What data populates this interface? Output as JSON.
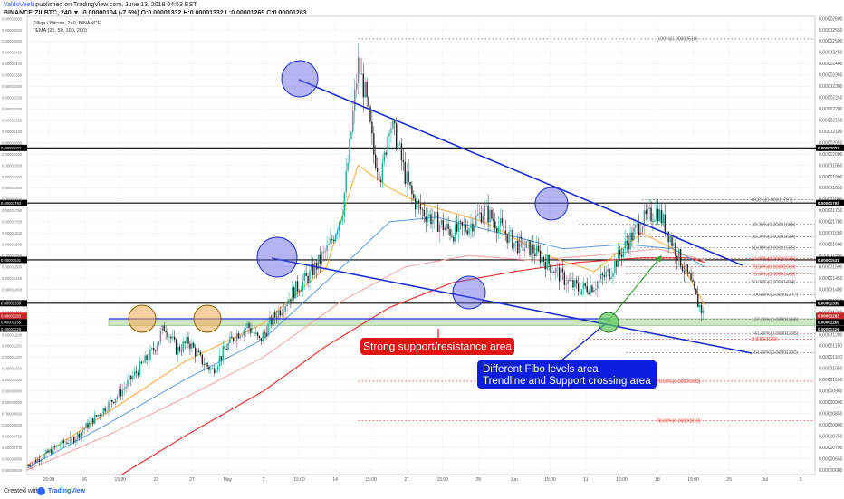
{
  "header": {
    "publisher": "ValdoVeeb",
    "published_line": " published on TradingView.com, June 13, 2018 04:53 EST",
    "symbol_line": "BINANCE:ZILBTC, 240 ▼ -0.00000104 (-7.5%) O:0.00001332 H:0.00001332 L:0.00001269 C:0.00001283",
    "legend_title": "Zilliqa / Bitcoin, 240, BINANCE",
    "indicator": "TEMA (25, 50, 100, 200)"
  },
  "footer": {
    "created_with": "Created with",
    "brand": "TradingView"
  },
  "colors": {
    "tema25": "#f5a93a",
    "tema50": "#5b9be0",
    "tema100": "#f2a0a0",
    "tema200": "#e53935",
    "trendline": "#1e2fd0",
    "support_zone": "#cfe8c4",
    "red_label": "#e31414",
    "blue_label": "#0b1ee0"
  },
  "chart_data": {
    "type": "line",
    "series_kind": "candlestick",
    "ylim": [
      5.8e-06,
      2.61e-05
    ],
    "y_ticks": [
      "0.00002600",
      "0.00002550",
      "0.00002500",
      "0.00002450",
      "0.00002400",
      "0.00002350",
      "0.00002300",
      "0.00002250",
      "0.00002200",
      "0.00002150",
      "0.00002100",
      "0.00002050",
      "0.00002000",
      "0.00001950",
      "0.00001900",
      "0.00001850",
      "0.00001800",
      "0.00001750",
      "0.00001700",
      "0.00001650",
      "0.00001600",
      "0.00001550",
      "0.00001500",
      "0.00001450",
      "0.00001400",
      "0.00001350",
      "0.00001300",
      "0.00001250",
      "0.00001200",
      "0.00001150",
      "0.00001100",
      "0.00001050",
      "0.00001000",
      "0.00000950",
      "0.00000900",
      "0.00000850",
      "0.00000800",
      "0.00000750",
      "0.00000700",
      "0.00000650",
      "0.00000600"
    ],
    "x_ticks": [
      "15:00",
      "16",
      "15:00",
      "23",
      "27",
      "May",
      "7",
      "15:00",
      "14",
      "15:00",
      "21",
      "15:00",
      "28",
      "Jun",
      "15:00",
      "11",
      "15:00",
      "18",
      "15:00",
      "25",
      "Jul",
      "5"
    ],
    "close_path": [
      [
        0,
        6.2e-06
      ],
      [
        0.02,
        6.6e-06
      ],
      [
        0.04,
        7.1e-06
      ],
      [
        0.06,
        7.4e-06
      ],
      [
        0.08,
        8.1e-06
      ],
      [
        0.1,
        8.8e-06
      ],
      [
        0.12,
        9.5e-06
      ],
      [
        0.14,
        1.04e-05
      ],
      [
        0.16,
        1.13e-05
      ],
      [
        0.175,
        1.24e-05
      ],
      [
        0.19,
        1.13e-05
      ],
      [
        0.205,
        1.17e-05
      ],
      [
        0.22,
        1.09e-05
      ],
      [
        0.235,
        1.04e-05
      ],
      [
        0.25,
        1.13e-05
      ],
      [
        0.265,
        1.2e-05
      ],
      [
        0.28,
        1.24e-05
      ],
      [
        0.295,
        1.17e-05
      ],
      [
        0.31,
        1.26e-05
      ],
      [
        0.325,
        1.33e-05
      ],
      [
        0.34,
        1.4e-05
      ],
      [
        0.355,
        1.45e-05
      ],
      [
        0.37,
        1.52e-05
      ],
      [
        0.385,
        1.6e-05
      ],
      [
        0.4,
        1.75e-05
      ],
      [
        0.41,
        2.05e-05
      ],
      [
        0.42,
        2.4e-05
      ],
      [
        0.43,
        2.25e-05
      ],
      [
        0.44,
        2e-05
      ],
      [
        0.45,
        1.9e-05
      ],
      [
        0.46,
        2.15e-05
      ],
      [
        0.47,
        2.05e-05
      ],
      [
        0.48,
        1.9e-05
      ],
      [
        0.49,
        1.8e-05
      ],
      [
        0.5,
        1.75e-05
      ],
      [
        0.52,
        1.7e-05
      ],
      [
        0.54,
        1.65e-05
      ],
      [
        0.56,
        1.68e-05
      ],
      [
        0.58,
        1.75e-05
      ],
      [
        0.6,
        1.68e-05
      ],
      [
        0.62,
        1.6e-05
      ],
      [
        0.64,
        1.58e-05
      ],
      [
        0.66,
        1.52e-05
      ],
      [
        0.68,
        1.45e-05
      ],
      [
        0.7,
        1.4e-05
      ],
      [
        0.72,
        1.42e-05
      ],
      [
        0.74,
        1.48e-05
      ],
      [
        0.76,
        1.6e-05
      ],
      [
        0.78,
        1.7e-05
      ],
      [
        0.8,
        1.75e-05
      ],
      [
        0.81,
        1.68e-05
      ],
      [
        0.82,
        1.6e-05
      ],
      [
        0.83,
        1.52e-05
      ],
      [
        0.84,
        1.45e-05
      ],
      [
        0.85,
        1.35e-05
      ],
      [
        0.86,
        1.28e-05
      ]
    ],
    "tema25_path": [
      [
        0,
        6.2e-06
      ],
      [
        0.1,
        8.5e-06
      ],
      [
        0.2,
        1.08e-05
      ],
      [
        0.3,
        1.25e-05
      ],
      [
        0.38,
        1.5e-05
      ],
      [
        0.42,
        1.95e-05
      ],
      [
        0.46,
        1.85e-05
      ],
      [
        0.5,
        1.78e-05
      ],
      [
        0.58,
        1.7e-05
      ],
      [
        0.66,
        1.55e-05
      ],
      [
        0.72,
        1.48e-05
      ],
      [
        0.78,
        1.65e-05
      ],
      [
        0.82,
        1.58e-05
      ],
      [
        0.86,
        1.33e-05
      ]
    ],
    "tema50_path": [
      [
        0,
        6.1e-06
      ],
      [
        0.1,
        8e-06
      ],
      [
        0.2,
        1e-05
      ],
      [
        0.3,
        1.18e-05
      ],
      [
        0.4,
        1.5e-05
      ],
      [
        0.46,
        1.7e-05
      ],
      [
        0.52,
        1.72e-05
      ],
      [
        0.6,
        1.65e-05
      ],
      [
        0.68,
        1.58e-05
      ],
      [
        0.76,
        1.6e-05
      ],
      [
        0.82,
        1.58e-05
      ],
      [
        0.86,
        1.5e-05
      ]
    ],
    "tema100_path": [
      [
        0,
        6e-06
      ],
      [
        0.1,
        7.5e-06
      ],
      [
        0.2,
        9.2e-06
      ],
      [
        0.3,
        1.1e-05
      ],
      [
        0.4,
        1.35e-05
      ],
      [
        0.48,
        1.5e-05
      ],
      [
        0.56,
        1.55e-05
      ],
      [
        0.64,
        1.53e-05
      ],
      [
        0.72,
        1.55e-05
      ],
      [
        0.8,
        1.58e-05
      ],
      [
        0.86,
        1.53e-05
      ]
    ],
    "tema200_path": [
      [
        0.12,
        5.8e-06
      ],
      [
        0.2,
        7.5e-06
      ],
      [
        0.3,
        9.5e-06
      ],
      [
        0.38,
        1.15e-05
      ],
      [
        0.46,
        1.32e-05
      ],
      [
        0.54,
        1.43e-05
      ],
      [
        0.62,
        1.48e-05
      ],
      [
        0.7,
        1.52e-05
      ],
      [
        0.78,
        1.54e-05
      ],
      [
        0.84,
        1.54e-05
      ],
      [
        0.86,
        1.52e-05
      ]
    ],
    "horizontal_levels": [
      {
        "value": 2.027e-05,
        "label": "0.00002027"
      },
      {
        "value": 1.783e-05,
        "label": "0.00001783"
      },
      {
        "value": 1.531e-05,
        "label": "0.00001531"
      },
      {
        "value": 1.339e-05,
        "label": "0.00001339"
      }
    ],
    "price_badges": [
      {
        "value": 1.283e-05,
        "label": "0.00001283"
      },
      {
        "value": 1.255e-05,
        "label": "0.00001255"
      },
      {
        "value": 1.226e-05,
        "label": "0.00001226"
      }
    ],
    "support_zone": [
      1.24e-05,
      1.27e-05
    ],
    "fib_levels": [
      {
        "value": 2.51e-05,
        "label": "0.00%(0.00002510)",
        "color": "#666666",
        "x0": 0.42
      },
      {
        "value": 1.797e-05,
        "label": "0.00%(0.00001797)",
        "color": "#666666",
        "x0": 0.78
      },
      {
        "value": 1.688e-05,
        "label": "38.20%(0.00001688)",
        "color": "#666666",
        "x0": 0.7
      },
      {
        "value": 1.634e-05,
        "label": "38.20%(0.00001634)",
        "color": "#666666",
        "x0": 0.76
      },
      {
        "value": 1.585e-05,
        "label": "50.00%(0.00001585)",
        "color": "#666666",
        "x0": 0.76
      },
      {
        "value": 1.536e-05,
        "label": "61.80%(0.00001536)",
        "color": "#e53935",
        "x0": 0.76
      },
      {
        "value": 1.5e-05,
        "label": "70.50%(0.00001500)",
        "color": "#e53935",
        "x0": 0.76
      },
      {
        "value": 1.468e-05,
        "label": "78.60%(0.00001468)",
        "color": "#e53935",
        "x0": 0.76
      },
      {
        "value": 1.434e-05,
        "label": "50.00%(0.00001434)",
        "color": "#666666",
        "x0": 0.7
      },
      {
        "value": 1.377e-05,
        "label": "100.00%(0.00001377)",
        "color": "#666666",
        "x0": 0.76
      },
      {
        "value": 1.268e-05,
        "label": "127.20%(0.00001268)",
        "color": "#666666",
        "x0": 0.76
      },
      {
        "value": 1.205e-05,
        "label": "141.40%(0.00001205)",
        "color": "#666666",
        "x0": 0.76
      },
      {
        "value": 1.18e-05,
        "label": "0.00001180)",
        "color": "#e53935",
        "x0": 0.7
      },
      {
        "value": 1.12e-05,
        "label": "161.80%(0.00001120)",
        "color": "#666666",
        "x0": 0.76
      },
      {
        "value": 9.93e-06,
        "label": "70.50%(0.00000993)",
        "color": "#e53935",
        "x0": 0.42
      },
      {
        "value": 8.18e-06,
        "label": "78.60%(0.00000818)",
        "color": "#e53935",
        "x0": 0.42
      }
    ],
    "annotations": [
      {
        "text": "Strong support/resistance area",
        "type": "red-callout"
      },
      {
        "text": "Different Fibo levels area",
        "type": "blue-callout"
      },
      {
        "text": "Trendline and Support crossing area",
        "type": "blue-callout"
      }
    ],
    "grid": true,
    "legend": "top-left"
  }
}
